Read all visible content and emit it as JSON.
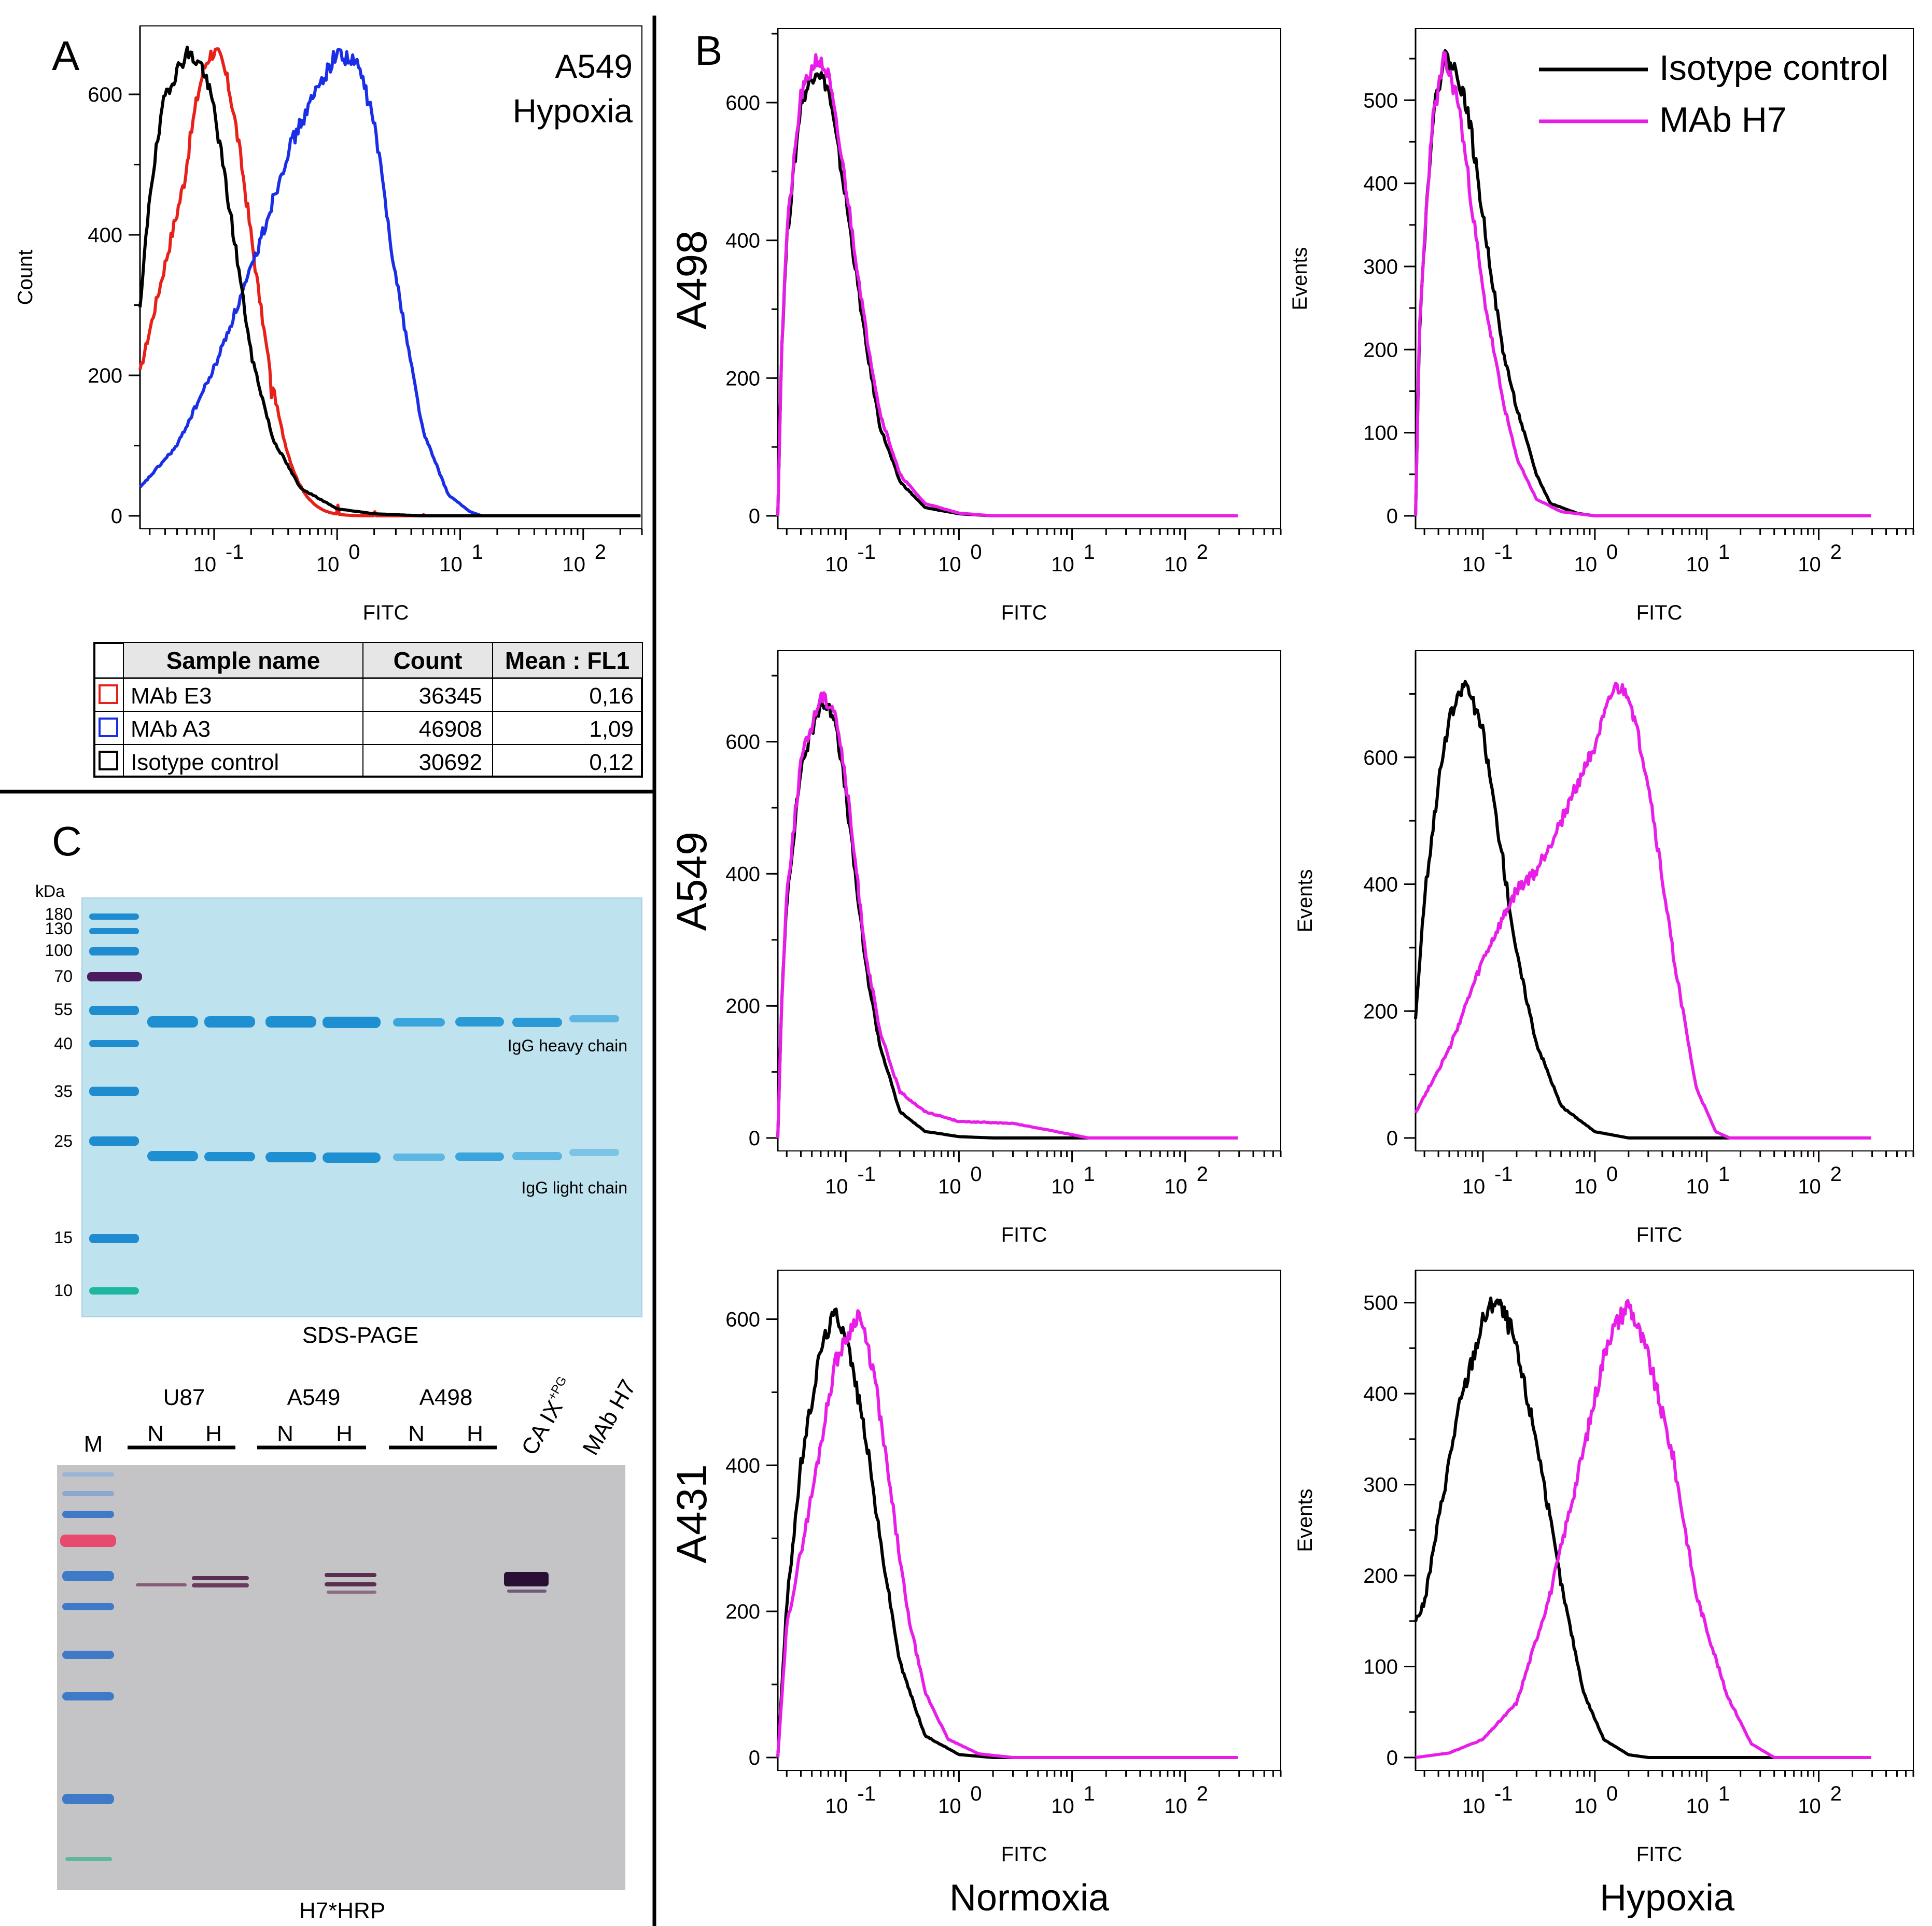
{
  "panels": {
    "A": "A",
    "B": "B",
    "C": "C"
  },
  "colors": {
    "black": "#000000",
    "magenta": "#e81ee8",
    "red": "#e8201a",
    "blue": "#1a2ee8"
  },
  "legend": {
    "isotype": "Isotype control",
    "mab_h7": "MAb H7"
  },
  "columns": {
    "normoxia": "Normoxia",
    "hypoxia": "Hypoxia"
  },
  "rows": {
    "a498": "A498",
    "a549": "A549",
    "a431": "A431"
  },
  "panelA": {
    "title_line1": "A549",
    "title_line2": "Hypoxia",
    "table": {
      "headers": [
        "Sample name",
        "Count",
        "Mean : FL1"
      ],
      "rows": [
        {
          "name": "MAb E3",
          "count": "36345",
          "mean": "0,16",
          "color": "#e8201a"
        },
        {
          "name": "MAb A3",
          "count": "46908",
          "mean": "1,09",
          "color": "#1a2ee8"
        },
        {
          "name": "Isotype control",
          "count": "30692",
          "mean": "0,12",
          "color": "#000000"
        }
      ]
    }
  },
  "gel": {
    "kda_label": "kDa",
    "markers": [
      "180",
      "130",
      "100",
      "70",
      "55",
      "40",
      "35",
      "25",
      "15",
      "10"
    ],
    "heavy_chain": "IgG heavy chain",
    "light_chain": "IgG light chain",
    "caption": "SDS-PAGE"
  },
  "blot": {
    "m_label": "M",
    "groups": [
      "U87",
      "A549",
      "A498"
    ],
    "lane_n": "N",
    "lane_h": "H",
    "caix": "CA IX",
    "caix_sup": "+PG",
    "mab": "MAb H7",
    "caption": "H7*HRP"
  },
  "chart_data": [
    {
      "id": "A",
      "type": "line",
      "title": "A549 Hypoxia",
      "xlabel": "FITC",
      "ylabel": "Count",
      "xscale": "log",
      "xlim": [
        0.025,
        300
      ],
      "ylim": [
        0,
        690
      ],
      "yticks": [
        0,
        200,
        400,
        600
      ],
      "xticks": [
        "10^-1",
        "10^0",
        "10^1",
        "10^2"
      ],
      "series": [
        {
          "name": "MAb E3",
          "color": "#e8201a",
          "peak_x": 0.1,
          "peak_y": 660,
          "width_log10": 0.3,
          "base_y": 130,
          "tail": [
            [
              0.3,
              110
            ],
            [
              1.0,
              22
            ],
            [
              2.0,
              8
            ],
            [
              5.0,
              2
            ],
            [
              20,
              0
            ]
          ]
        },
        {
          "name": "MAb A3",
          "color": "#1a2ee8",
          "points": [
            [
              0.025,
              40
            ],
            [
              0.05,
              100
            ],
            [
              0.1,
              210
            ],
            [
              0.2,
              350
            ],
            [
              0.4,
              520
            ],
            [
              0.7,
              610
            ],
            [
              1.0,
              660
            ],
            [
              1.5,
              640
            ],
            [
              2.0,
              560
            ],
            [
              3.0,
              340
            ],
            [
              5.0,
              120
            ],
            [
              8.0,
              30
            ],
            [
              12,
              6
            ],
            [
              15,
              0
            ]
          ]
        },
        {
          "name": "Isotype control",
          "color": "#000000",
          "points": [
            [
              0.025,
              290
            ],
            [
              0.03,
              460
            ],
            [
              0.04,
              600
            ],
            [
              0.06,
              660
            ],
            [
              0.08,
              640
            ],
            [
              0.1,
              580
            ],
            [
              0.15,
              380
            ],
            [
              0.2,
              230
            ],
            [
              0.3,
              110
            ],
            [
              0.5,
              40
            ],
            [
              1.0,
              10
            ],
            [
              2.0,
              3
            ],
            [
              5,
              0
            ]
          ]
        }
      ]
    },
    {
      "id": "B-A498-normoxia",
      "type": "line",
      "xlabel": "FITC",
      "ylabel": "",
      "xscale": "log",
      "xlim": [
        0.025,
        700
      ],
      "ylim": [
        0,
        700
      ],
      "yticks": [
        0,
        200,
        400,
        600
      ],
      "xticks": [
        "10^-1",
        "10^0",
        "10^1",
        "10^2"
      ],
      "series": [
        {
          "name": "Isotype control",
          "color": "#000000",
          "points": [
            [
              0.025,
              0
            ],
            [
              0.027,
              240
            ],
            [
              0.03,
              400
            ],
            [
              0.04,
              600
            ],
            [
              0.055,
              650
            ],
            [
              0.07,
              620
            ],
            [
              0.1,
              460
            ],
            [
              0.15,
              250
            ],
            [
              0.2,
              130
            ],
            [
              0.3,
              50
            ],
            [
              0.5,
              12
            ],
            [
              1.0,
              3
            ],
            [
              2.0,
              0
            ],
            [
              500,
              0
            ]
          ]
        },
        {
          "name": "MAb H7",
          "color": "#e81ee8",
          "points": [
            [
              0.025,
              0
            ],
            [
              0.027,
              240
            ],
            [
              0.03,
              410
            ],
            [
              0.04,
              610
            ],
            [
              0.055,
              665
            ],
            [
              0.07,
              640
            ],
            [
              0.1,
              480
            ],
            [
              0.15,
              270
            ],
            [
              0.2,
              150
            ],
            [
              0.3,
              60
            ],
            [
              0.5,
              18
            ],
            [
              1.0,
              4
            ],
            [
              2.0,
              0
            ],
            [
              500,
              0
            ]
          ]
        }
      ]
    },
    {
      "id": "B-A498-hypoxia",
      "type": "line",
      "xlabel": "FITC",
      "ylabel": "Events",
      "xscale": "log",
      "xlim": [
        0.025,
        700
      ],
      "ylim": [
        0,
        580
      ],
      "yticks": [
        0,
        100,
        200,
        300,
        400,
        500
      ],
      "xticks": [
        "10^-1",
        "10^0",
        "10^1",
        "10^2"
      ],
      "series": [
        {
          "name": "Isotype control",
          "color": "#000000",
          "points": [
            [
              0.025,
              0
            ],
            [
              0.027,
              220
            ],
            [
              0.03,
              330
            ],
            [
              0.035,
              470
            ],
            [
              0.045,
              555
            ],
            [
              0.06,
              530
            ],
            [
              0.075,
              480
            ],
            [
              0.1,
              360
            ],
            [
              0.15,
              200
            ],
            [
              0.2,
              130
            ],
            [
              0.3,
              50
            ],
            [
              0.4,
              15
            ],
            [
              0.7,
              3
            ],
            [
              1.0,
              0
            ],
            [
              500,
              0
            ]
          ]
        },
        {
          "name": "MAb H7",
          "color": "#e81ee8",
          "points": [
            [
              0.025,
              0
            ],
            [
              0.027,
              220
            ],
            [
              0.03,
              330
            ],
            [
              0.035,
              470
            ],
            [
              0.045,
              550
            ],
            [
              0.06,
              500
            ],
            [
              0.075,
              400
            ],
            [
              0.1,
              270
            ],
            [
              0.15,
              140
            ],
            [
              0.2,
              70
            ],
            [
              0.3,
              20
            ],
            [
              0.5,
              5
            ],
            [
              1.0,
              0
            ],
            [
              500,
              0
            ]
          ]
        }
      ]
    },
    {
      "id": "B-A549-normoxia",
      "type": "line",
      "xlabel": "FITC",
      "ylabel": "",
      "xscale": "log",
      "xlim": [
        0.025,
        700
      ],
      "ylim": [
        0,
        730
      ],
      "yticks": [
        0,
        200,
        400,
        600
      ],
      "xticks": [
        "10^-1",
        "10^0",
        "10^1",
        "10^2"
      ],
      "series": [
        {
          "name": "Isotype control",
          "color": "#000000",
          "points": [
            [
              0.025,
              0
            ],
            [
              0.027,
              200
            ],
            [
              0.03,
              360
            ],
            [
              0.04,
              560
            ],
            [
              0.06,
              660
            ],
            [
              0.08,
              640
            ],
            [
              0.1,
              520
            ],
            [
              0.15,
              260
            ],
            [
              0.2,
              140
            ],
            [
              0.3,
              40
            ],
            [
              0.5,
              10
            ],
            [
              1.0,
              2
            ],
            [
              2.0,
              0
            ],
            [
              500,
              0
            ]
          ]
        },
        {
          "name": "MAb H7",
          "color": "#e81ee8",
          "points": [
            [
              0.025,
              0
            ],
            [
              0.027,
              200
            ],
            [
              0.03,
              370
            ],
            [
              0.04,
              570
            ],
            [
              0.06,
              670
            ],
            [
              0.08,
              650
            ],
            [
              0.1,
              540
            ],
            [
              0.15,
              280
            ],
            [
              0.2,
              160
            ],
            [
              0.3,
              70
            ],
            [
              0.5,
              40
            ],
            [
              1.0,
              25
            ],
            [
              3.0,
              22
            ],
            [
              5.0,
              15
            ],
            [
              10,
              5
            ],
            [
              14,
              0
            ],
            [
              500,
              0
            ]
          ]
        }
      ]
    },
    {
      "id": "B-A549-hypoxia",
      "type": "line",
      "xlabel": "FITC",
      "ylabel": "Events",
      "xscale": "log",
      "xlim": [
        0.025,
        700
      ],
      "ylim": [
        0,
        760
      ],
      "yticks": [
        0,
        200,
        400,
        600
      ],
      "xticks": [
        "10^-1",
        "10^0",
        "10^1",
        "10^2"
      ],
      "series": [
        {
          "name": "Isotype control",
          "color": "#000000",
          "points": [
            [
              0.025,
              190
            ],
            [
              0.03,
              380
            ],
            [
              0.04,
              560
            ],
            [
              0.05,
              660
            ],
            [
              0.07,
              720
            ],
            [
              0.1,
              640
            ],
            [
              0.15,
              440
            ],
            [
              0.2,
              290
            ],
            [
              0.3,
              150
            ],
            [
              0.5,
              50
            ],
            [
              1.0,
              10
            ],
            [
              2.0,
              0
            ],
            [
              500,
              0
            ]
          ]
        },
        {
          "name": "MAb H7",
          "color": "#e81ee8",
          "points": [
            [
              0.025,
              40
            ],
            [
              0.05,
              140
            ],
            [
              0.1,
              280
            ],
            [
              0.2,
              390
            ],
            [
              0.3,
              420
            ],
            [
              0.5,
              500
            ],
            [
              1.0,
              620
            ],
            [
              1.5,
              710
            ],
            [
              2.0,
              700
            ],
            [
              3.0,
              560
            ],
            [
              5.0,
              290
            ],
            [
              8.0,
              80
            ],
            [
              12,
              10
            ],
            [
              16,
              0
            ],
            [
              500,
              0
            ]
          ]
        }
      ]
    },
    {
      "id": "B-A431-normoxia",
      "type": "line",
      "xlabel": "FITC",
      "ylabel": "",
      "xscale": "log",
      "xlim": [
        0.025,
        700
      ],
      "ylim": [
        0,
        660
      ],
      "yticks": [
        0,
        200,
        400,
        600
      ],
      "xticks": [
        "10^-1",
        "10^0",
        "10^1",
        "10^2"
      ],
      "series": [
        {
          "name": "Isotype control",
          "color": "#000000",
          "points": [
            [
              0.025,
              0
            ],
            [
              0.03,
              210
            ],
            [
              0.04,
              400
            ],
            [
              0.06,
              560
            ],
            [
              0.08,
              610
            ],
            [
              0.1,
              580
            ],
            [
              0.15,
              440
            ],
            [
              0.2,
              300
            ],
            [
              0.3,
              130
            ],
            [
              0.5,
              30
            ],
            [
              1.0,
              4
            ],
            [
              2.0,
              0
            ],
            [
              500,
              0
            ]
          ]
        },
        {
          "name": "MAb H7",
          "color": "#e81ee8",
          "points": [
            [
              0.025,
              0
            ],
            [
              0.03,
              180
            ],
            [
              0.05,
              360
            ],
            [
              0.08,
              540
            ],
            [
              0.13,
              610
            ],
            [
              0.18,
              520
            ],
            [
              0.25,
              360
            ],
            [
              0.35,
              200
            ],
            [
              0.5,
              90
            ],
            [
              0.8,
              25
            ],
            [
              1.5,
              5
            ],
            [
              3.0,
              0
            ],
            [
              500,
              0
            ]
          ]
        }
      ]
    },
    {
      "id": "B-A431-hypoxia",
      "type": "line",
      "xlabel": "FITC",
      "ylabel": "Events",
      "xscale": "log",
      "xlim": [
        0.025,
        700
      ],
      "ylim": [
        0,
        530
      ],
      "yticks": [
        0,
        100,
        200,
        300,
        400,
        500
      ],
      "xticks": [
        "10^-1",
        "10^0",
        "10^1",
        "10^2"
      ],
      "series": [
        {
          "name": "Isotype control",
          "color": "#000000",
          "points": [
            [
              0.025,
              150
            ],
            [
              0.03,
              170
            ],
            [
              0.04,
              260
            ],
            [
              0.06,
              380
            ],
            [
              0.1,
              480
            ],
            [
              0.13,
              505
            ],
            [
              0.18,
              470
            ],
            [
              0.3,
              350
            ],
            [
              0.5,
              190
            ],
            [
              0.8,
              70
            ],
            [
              1.2,
              20
            ],
            [
              2.0,
              3
            ],
            [
              3.0,
              0
            ],
            [
              500,
              0
            ]
          ]
        },
        {
          "name": "MAb H7",
          "color": "#e81ee8",
          "points": [
            [
              0.025,
              0
            ],
            [
              0.05,
              5
            ],
            [
              0.1,
              20
            ],
            [
              0.2,
              60
            ],
            [
              0.4,
              180
            ],
            [
              0.8,
              340
            ],
            [
              1.3,
              460
            ],
            [
              2.0,
              500
            ],
            [
              3.0,
              440
            ],
            [
              5.0,
              330
            ],
            [
              8.0,
              180
            ],
            [
              15,
              70
            ],
            [
              25,
              15
            ],
            [
              40,
              0
            ],
            [
              500,
              0
            ]
          ]
        }
      ]
    }
  ]
}
